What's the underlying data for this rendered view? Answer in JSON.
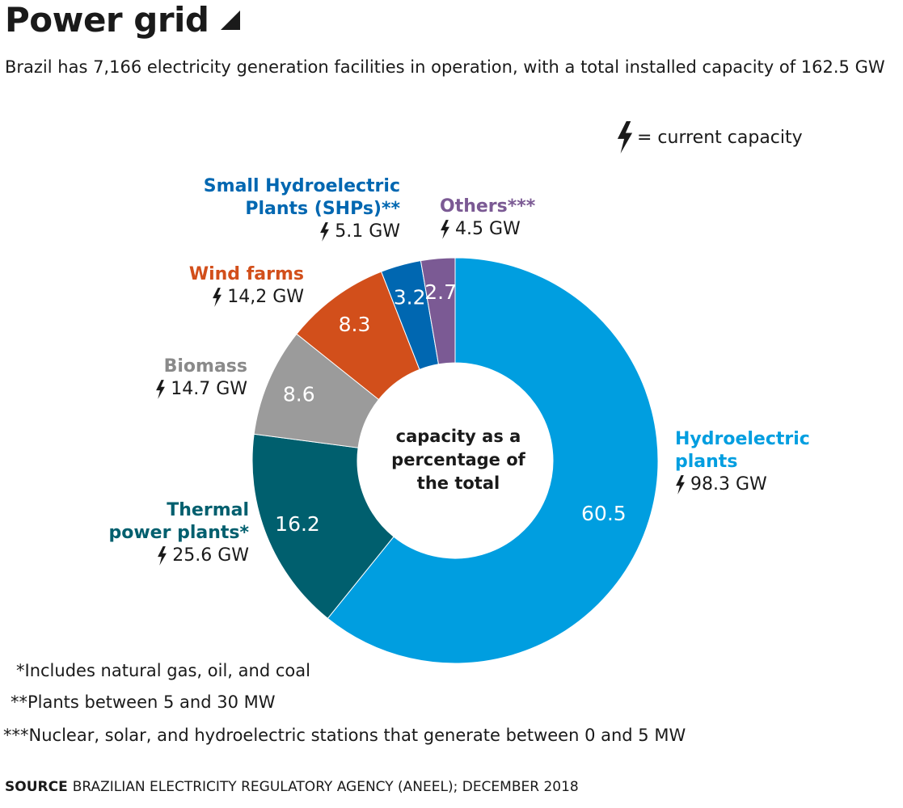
{
  "header": {
    "title": "Power grid",
    "subtitle": "Brazil has 7,166 electricity generation facilities in operation, with a total installed capacity of 162.5 GW"
  },
  "legend": {
    "text": "= current capacity",
    "icon": "lightning-bolt-icon"
  },
  "center_label": "capacity as a percentage of the total",
  "colors": {
    "hydro": "#009ee0",
    "thermal": "#005f6e",
    "biomass": "#9b9b9b",
    "wind": "#d24f1b",
    "shp": "#0067b1",
    "others": "#7b5a94"
  },
  "chart_data": {
    "type": "pie",
    "title": "Power grid",
    "subtitle": "Brazil has 7,166 electricity generation facilities in operation, with a total installed capacity of 162.5 GW",
    "center_label": "capacity as a percentage of the total",
    "slices": [
      {
        "key": "hydro",
        "name": "Hydroelectric plants",
        "name_lines": [
          "Hydroelectric",
          "plants"
        ],
        "percent": 60.5,
        "percent_label": "60.5",
        "capacity": "98.3 GW",
        "color": "#009ee0"
      },
      {
        "key": "thermal",
        "name": "Thermal power plants*",
        "name_lines": [
          "Thermal",
          "power plants*"
        ],
        "percent": 16.2,
        "percent_label": "16.2",
        "capacity": "25.6 GW",
        "color": "#005f6e"
      },
      {
        "key": "biomass",
        "name": "Biomass",
        "name_lines": [
          "Biomass"
        ],
        "percent": 8.6,
        "percent_label": "8.6",
        "capacity": "14.7 GW",
        "color": "#9b9b9b"
      },
      {
        "key": "wind",
        "name": "Wind farms",
        "name_lines": [
          "Wind farms"
        ],
        "percent": 8.3,
        "percent_label": "8.3",
        "capacity": "14,2 GW",
        "color": "#d24f1b"
      },
      {
        "key": "shp",
        "name": "Small Hydroelectric Plants (SHPs)**",
        "name_lines": [
          "Small Hydroelectric",
          "Plants (SHPs)**"
        ],
        "percent": 3.2,
        "percent_label": "3.2",
        "capacity": "5.1 GW",
        "color": "#0067b1"
      },
      {
        "key": "others",
        "name": "Others***",
        "name_lines": [
          "Others***"
        ],
        "percent": 2.7,
        "percent_label": "2.7",
        "capacity": "4.5 GW",
        "color": "#7b5a94"
      }
    ]
  },
  "notes": [
    "*Includes natural gas, oil, and coal",
    "**Plants between 5 and 30 MW",
    "***Nuclear, solar, and hydroelectric stations that generate between 0 and 5 MW"
  ],
  "source": {
    "label": "SOURCE",
    "text": "BRAZILIAN ELECTRICITY REGULATORY AGENCY (ANEEL); DECEMBER 2018"
  }
}
